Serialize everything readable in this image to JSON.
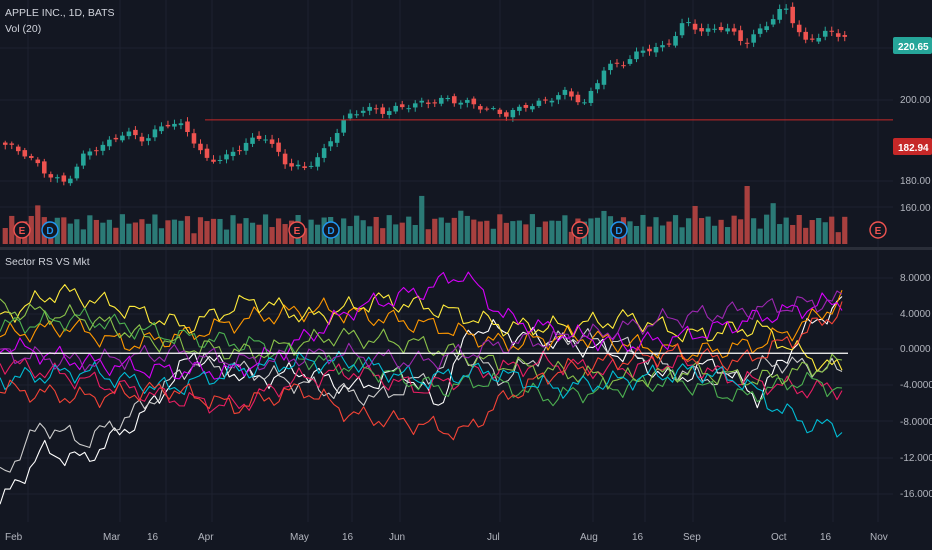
{
  "colors": {
    "background": "#131722",
    "grid": "#1e2230",
    "divider": "#2a2e39",
    "axis_text": "#b2b5be",
    "up": "#26a69a",
    "down": "#ef5350",
    "vol_up": "#2b7a76",
    "vol_down": "#a8403f",
    "hline": "#c62828",
    "zero_line": "#ffffff",
    "earnings": "#ef5350",
    "dividend": "#2196f3"
  },
  "price_panel": {
    "title": "APPLE INC., 1D, BATS",
    "volume_label": "Vol (20)",
    "last_price_tag": "220.65",
    "hline_tag": "182.94",
    "y_ticks": [
      "200.00",
      "180.00",
      "160.00"
    ]
  },
  "indicator_panel": {
    "title": "Sector RS VS Mkt",
    "y_ticks": [
      "8.0000",
      "4.0000",
      "0.0000",
      "-4.0000",
      "-8.0000",
      "-12.0000",
      "-16.0000"
    ]
  },
  "time_axis": {
    "labels": [
      "Feb",
      "Mar",
      "16",
      "Apr",
      "May",
      "16",
      "Jun",
      "Jul",
      "Aug",
      "16",
      "Sep",
      "Oct",
      "16",
      "Nov"
    ]
  },
  "events": [
    {
      "symbol": "E",
      "kind": "earnings"
    },
    {
      "symbol": "D",
      "kind": "dividend"
    },
    {
      "symbol": "E",
      "kind": "earnings"
    },
    {
      "symbol": "D",
      "kind": "dividend"
    },
    {
      "symbol": "E",
      "kind": "earnings"
    },
    {
      "symbol": "D",
      "kind": "dividend"
    },
    {
      "symbol": "E",
      "kind": "earnings"
    }
  ],
  "chart_data": [
    {
      "type": "candlestick",
      "title": "APPLE INC., 1D, BATS",
      "y_axis_ticks": [
        160,
        180,
        200
      ],
      "ylim": [
        150,
        232
      ],
      "horizontal_line": 182.94,
      "last_price": 220.65,
      "approx_close_path": [
        {
          "date": "Jan 25",
          "close": 172
        },
        {
          "date": "Jan 30",
          "close": 167
        },
        {
          "date": "Feb 5",
          "close": 160
        },
        {
          "date": "Feb 9",
          "close": 156
        },
        {
          "date": "Feb 15",
          "close": 168
        },
        {
          "date": "Feb 21",
          "close": 171
        },
        {
          "date": "Feb 27",
          "close": 178
        },
        {
          "date": "Mar 5",
          "close": 175
        },
        {
          "date": "Mar 12",
          "close": 181
        },
        {
          "date": "Mar 16",
          "close": 179
        },
        {
          "date": "Mar 23",
          "close": 166
        },
        {
          "date": "Apr 2",
          "close": 167
        },
        {
          "date": "Apr 9",
          "close": 172
        },
        {
          "date": "Apr 16",
          "close": 175
        },
        {
          "date": "Apr 20",
          "close": 165
        },
        {
          "date": "Apr 25",
          "close": 162
        },
        {
          "date": "May 1",
          "close": 169
        },
        {
          "date": "May 4",
          "close": 183
        },
        {
          "date": "May 10",
          "close": 189
        },
        {
          "date": "May 18",
          "close": 187
        },
        {
          "date": "May 25",
          "close": 188
        },
        {
          "date": "Jun 1",
          "close": 190
        },
        {
          "date": "Jun 6",
          "close": 193
        },
        {
          "date": "Jun 12",
          "close": 191
        },
        {
          "date": "Jun 19",
          "close": 187
        },
        {
          "date": "Jun 28",
          "close": 185
        },
        {
          "date": "Jul 9",
          "close": 190
        },
        {
          "date": "Jul 17",
          "close": 191
        },
        {
          "date": "Jul 25",
          "close": 194
        },
        {
          "date": "Jul 31",
          "close": 190
        },
        {
          "date": "Aug 2",
          "close": 207
        },
        {
          "date": "Aug 9",
          "close": 208
        },
        {
          "date": "Aug 16",
          "close": 213
        },
        {
          "date": "Aug 23",
          "close": 215
        },
        {
          "date": "Aug 30",
          "close": 227
        },
        {
          "date": "Sep 7",
          "close": 221
        },
        {
          "date": "Sep 14",
          "close": 223
        },
        {
          "date": "Sep 21",
          "close": 217
        },
        {
          "date": "Sep 28",
          "close": 225
        },
        {
          "date": "Oct 3",
          "close": 232
        },
        {
          "date": "Oct 10",
          "close": 216
        },
        {
          "date": "Oct 16",
          "close": 222
        },
        {
          "date": "Oct 19",
          "close": 220.65
        }
      ]
    },
    {
      "type": "line",
      "title": "Sector RS VS Mkt",
      "y_axis_ticks": [
        8,
        4,
        0,
        -4,
        -8,
        -12,
        -16
      ],
      "ylim": [
        -19,
        10.5
      ],
      "zero_line": 0,
      "series": [
        {
          "color": "#ffffff",
          "points": [
            [
              0,
              -17
            ],
            [
              0.05,
              -11
            ],
            [
              0.1,
              -12
            ],
            [
              0.17,
              -7
            ],
            [
              0.23,
              0
            ],
            [
              0.3,
              -3
            ],
            [
              0.36,
              -2
            ],
            [
              0.42,
              -4
            ],
            [
              0.48,
              -2
            ],
            [
              0.52,
              -6
            ],
            [
              0.56,
              3
            ],
            [
              0.62,
              2
            ],
            [
              0.68,
              1
            ],
            [
              0.74,
              0
            ],
            [
              0.8,
              -3
            ],
            [
              0.85,
              -1
            ],
            [
              0.9,
              -5
            ],
            [
              0.95,
              2
            ],
            [
              1,
              6
            ]
          ]
        },
        {
          "color": "#cccccc",
          "points": [
            [
              0,
              -14
            ],
            [
              0.05,
              -8
            ],
            [
              0.1,
              -10
            ],
            [
              0.17,
              -6
            ],
            [
              0.23,
              -1
            ],
            [
              0.3,
              -2
            ],
            [
              0.38,
              -4
            ],
            [
              0.45,
              -5
            ],
            [
              0.5,
              -3
            ],
            [
              0.55,
              0
            ],
            [
              0.6,
              -3
            ],
            [
              0.67,
              2
            ],
            [
              0.74,
              1
            ],
            [
              0.8,
              -2
            ],
            [
              0.86,
              -3
            ],
            [
              0.92,
              -1
            ],
            [
              1,
              -2
            ]
          ]
        },
        {
          "color": "#e91e63",
          "points": [
            [
              0,
              -1
            ],
            [
              0.1,
              -3
            ],
            [
              0.2,
              -5
            ],
            [
              0.28,
              -6
            ],
            [
              0.35,
              -3
            ],
            [
              0.42,
              -2
            ],
            [
              0.5,
              -4
            ],
            [
              0.58,
              -2
            ],
            [
              0.65,
              -1
            ],
            [
              0.72,
              -2
            ],
            [
              0.8,
              -1
            ],
            [
              0.88,
              -3
            ],
            [
              0.95,
              -4
            ],
            [
              1,
              -4
            ]
          ]
        },
        {
          "color": "#ff9800",
          "points": [
            [
              0,
              2
            ],
            [
              0.08,
              3
            ],
            [
              0.15,
              1
            ],
            [
              0.22,
              2
            ],
            [
              0.3,
              4
            ],
            [
              0.38,
              5
            ],
            [
              0.45,
              4
            ],
            [
              0.52,
              3
            ],
            [
              0.6,
              1
            ],
            [
              0.68,
              2
            ],
            [
              0.75,
              1
            ],
            [
              0.82,
              0
            ],
            [
              0.9,
              1
            ],
            [
              0.95,
              3
            ],
            [
              1,
              6
            ]
          ]
        },
        {
          "color": "#ffeb3b",
          "points": [
            [
              0,
              4
            ],
            [
              0.07,
              7
            ],
            [
              0.15,
              5
            ],
            [
              0.22,
              3
            ],
            [
              0.3,
              6
            ],
            [
              0.37,
              4
            ],
            [
              0.45,
              6
            ],
            [
              0.52,
              5
            ],
            [
              0.6,
              3
            ],
            [
              0.67,
              3
            ],
            [
              0.75,
              4
            ],
            [
              0.82,
              2
            ],
            [
              0.9,
              3
            ],
            [
              0.95,
              0
            ],
            [
              1,
              -2
            ]
          ]
        },
        {
          "color": "#d500f9",
          "points": [
            [
              0,
              1
            ],
            [
              0.1,
              -1
            ],
            [
              0.2,
              -2
            ],
            [
              0.28,
              -2
            ],
            [
              0.35,
              1
            ],
            [
              0.42,
              5
            ],
            [
              0.5,
              7
            ],
            [
              0.55,
              9
            ],
            [
              0.6,
              4
            ],
            [
              0.68,
              2
            ],
            [
              0.75,
              1
            ],
            [
              0.82,
              2
            ],
            [
              0.9,
              4
            ],
            [
              0.95,
              5
            ],
            [
              1,
              6
            ]
          ]
        },
        {
          "color": "#4caf50",
          "points": [
            [
              0,
              3
            ],
            [
              0.1,
              4
            ],
            [
              0.2,
              2
            ],
            [
              0.3,
              1
            ],
            [
              0.38,
              -1
            ],
            [
              0.45,
              -2
            ],
            [
              0.52,
              -4
            ],
            [
              0.58,
              -3
            ],
            [
              0.65,
              -5
            ],
            [
              0.72,
              -4
            ],
            [
              0.8,
              -3
            ],
            [
              0.88,
              -5
            ],
            [
              0.95,
              -3
            ],
            [
              1,
              -4
            ]
          ]
        },
        {
          "color": "#8bc34a",
          "points": [
            [
              0,
              5
            ],
            [
              0.1,
              4
            ],
            [
              0.2,
              1
            ],
            [
              0.3,
              0
            ],
            [
              0.4,
              2
            ],
            [
              0.5,
              1
            ],
            [
              0.58,
              -1
            ],
            [
              0.66,
              -2
            ],
            [
              0.74,
              -3
            ],
            [
              0.82,
              -2
            ],
            [
              0.9,
              -3
            ],
            [
              1,
              -1
            ]
          ]
        },
        {
          "color": "#00bcd4",
          "points": [
            [
              0,
              -3
            ],
            [
              0.1,
              -2
            ],
            [
              0.2,
              -4
            ],
            [
              0.28,
              -2
            ],
            [
              0.35,
              -1
            ],
            [
              0.42,
              -1
            ],
            [
              0.5,
              -3
            ],
            [
              0.58,
              -2
            ],
            [
              0.66,
              -4
            ],
            [
              0.74,
              -3
            ],
            [
              0.82,
              -2
            ],
            [
              0.88,
              -3
            ],
            [
              0.92,
              -6
            ],
            [
              0.96,
              -8
            ],
            [
              1,
              -8.5
            ]
          ]
        },
        {
          "color": "#f44336",
          "points": [
            [
              0,
              -4
            ],
            [
              0.1,
              -5
            ],
            [
              0.2,
              -4
            ],
            [
              0.28,
              -6
            ],
            [
              0.36,
              -4
            ],
            [
              0.42,
              -7
            ],
            [
              0.5,
              -8
            ],
            [
              0.55,
              -9
            ],
            [
              0.6,
              -5
            ],
            [
              0.66,
              -2
            ],
            [
              0.72,
              -1
            ],
            [
              0.8,
              0
            ],
            [
              0.88,
              -1
            ],
            [
              0.95,
              2
            ],
            [
              1,
              5
            ]
          ]
        },
        {
          "color": "#9c27b0",
          "points": [
            [
              0,
              0
            ],
            [
              0.1,
              -1
            ],
            [
              0.2,
              0
            ],
            [
              0.3,
              -1
            ],
            [
              0.4,
              0
            ],
            [
              0.5,
              -1
            ],
            [
              0.6,
              1
            ],
            [
              0.7,
              2
            ],
            [
              0.8,
              4
            ],
            [
              0.9,
              5
            ],
            [
              1,
              6
            ]
          ]
        }
      ]
    }
  ]
}
